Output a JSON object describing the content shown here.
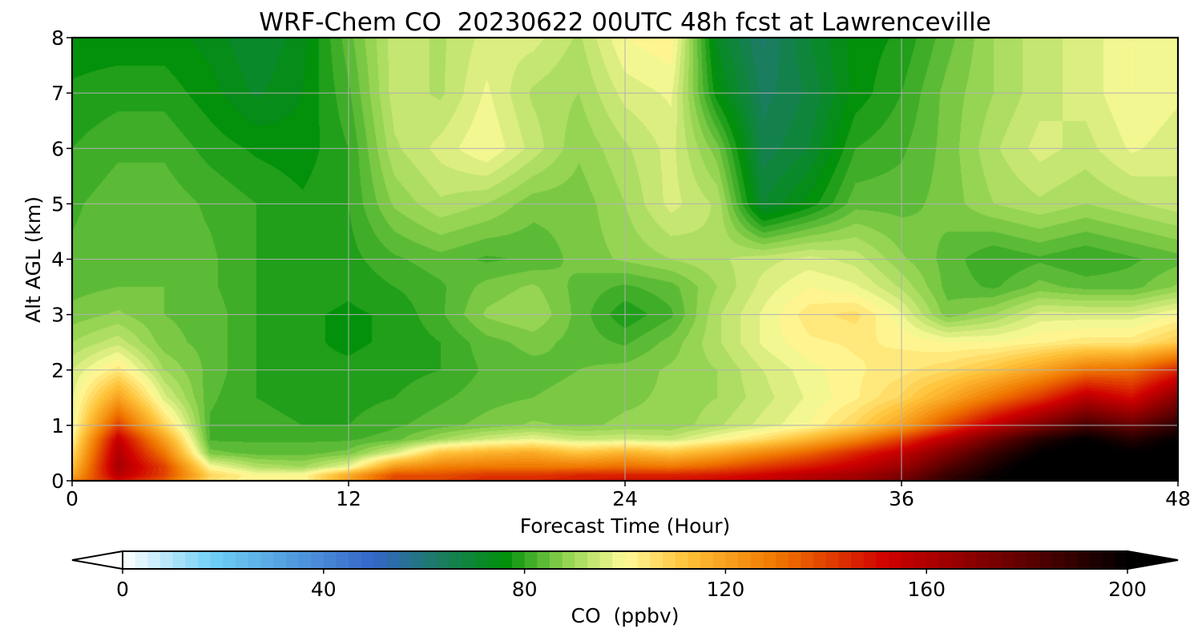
{
  "chart_data": {
    "type": "heatmap",
    "title": "WRF-Chem CO  20230622 00UTC 48h fcst at Lawrenceville",
    "xlabel": "Forecast Time (Hour)",
    "ylabel": "Alt AGL (km)",
    "xlim": [
      0,
      48
    ],
    "ylim": [
      0,
      8
    ],
    "x_ticks": [
      0,
      12,
      24,
      36,
      48
    ],
    "y_ticks": [
      0,
      1,
      2,
      3,
      4,
      5,
      6,
      7,
      8
    ],
    "grid": true,
    "colorbar": {
      "label": "CO  (ppbv)",
      "range": [
        0,
        200
      ],
      "ticks": [
        0,
        40,
        80,
        120,
        160,
        200
      ],
      "extend": "both",
      "stops": [
        {
          "v": 0,
          "color": "#ffffff"
        },
        {
          "v": 18,
          "color": "#6ecff5"
        },
        {
          "v": 50,
          "color": "#3566c8"
        },
        {
          "v": 62,
          "color": "#1c7a6a"
        },
        {
          "v": 76,
          "color": "#00900a"
        },
        {
          "v": 88,
          "color": "#8fd24e"
        },
        {
          "v": 100,
          "color": "#fffb9a"
        },
        {
          "v": 112,
          "color": "#ffc23a"
        },
        {
          "v": 130,
          "color": "#f07800"
        },
        {
          "v": 152,
          "color": "#d00000"
        },
        {
          "v": 176,
          "color": "#6e0000"
        },
        {
          "v": 200,
          "color": "#000000"
        }
      ]
    },
    "x": [
      0,
      2,
      4,
      6,
      8,
      10,
      12,
      14,
      16,
      18,
      20,
      22,
      24,
      26,
      28,
      30,
      32,
      34,
      36,
      38,
      40,
      42,
      44,
      46,
      48
    ],
    "y": [
      0,
      0.1,
      0.25,
      0.5,
      0.75,
      1,
      1.5,
      2,
      2.5,
      3,
      3.5,
      4,
      5,
      6,
      7,
      8
    ],
    "z": [
      [
        125,
        150,
        135,
        105,
        100,
        100,
        120,
        140,
        140,
        145,
        145,
        148,
        150,
        150,
        152,
        155,
        160,
        165,
        175,
        190,
        200,
        205,
        205,
        205,
        205
      ],
      [
        118,
        158,
        140,
        108,
        100,
        100,
        118,
        138,
        138,
        142,
        142,
        145,
        146,
        146,
        148,
        152,
        158,
        163,
        172,
        188,
        198,
        205,
        205,
        205,
        205
      ],
      [
        112,
        162,
        140,
        100,
        92,
        90,
        98,
        122,
        128,
        130,
        130,
        130,
        132,
        130,
        135,
        142,
        148,
        155,
        165,
        182,
        195,
        205,
        205,
        205,
        205
      ],
      [
        106,
        160,
        130,
        86,
        84,
        84,
        86,
        96,
        112,
        116,
        118,
        112,
        116,
        112,
        118,
        126,
        134,
        145,
        156,
        172,
        188,
        200,
        205,
        200,
        205
      ],
      [
        101,
        155,
        120,
        82,
        82,
        82,
        82,
        84,
        90,
        95,
        98,
        94,
        95,
        94,
        100,
        106,
        115,
        126,
        140,
        158,
        176,
        192,
        200,
        192,
        200
      ],
      [
        98,
        140,
        108,
        82,
        81,
        80,
        80,
        82,
        84,
        86,
        88,
        87,
        88,
        88,
        92,
        96,
        100,
        108,
        120,
        138,
        156,
        172,
        185,
        178,
        190
      ],
      [
        97,
        120,
        96,
        83,
        80,
        79,
        79,
        80,
        82,
        84,
        85,
        86,
        87,
        88,
        90,
        94,
        98,
        102,
        108,
        118,
        130,
        142,
        158,
        150,
        170
      ],
      [
        95,
        104,
        90,
        84,
        80,
        78,
        78,
        79,
        80,
        83,
        84,
        85,
        86,
        88,
        90,
        95,
        99,
        102,
        104,
        107,
        112,
        120,
        130,
        132,
        145
      ],
      [
        90,
        94,
        86,
        84,
        80,
        78,
        77,
        78,
        80,
        84,
        86,
        84,
        82,
        86,
        92,
        98,
        102,
        103,
        102,
        100,
        100,
        102,
        104,
        104,
        110
      ],
      [
        86,
        88,
        85,
        84,
        80,
        78,
        77,
        78,
        82,
        88,
        90,
        84,
        78,
        82,
        92,
        98,
        104,
        106,
        98,
        86,
        90,
        96,
        96,
        96,
        100
      ],
      [
        84,
        85,
        85,
        83,
        80,
        79,
        78,
        80,
        82,
        86,
        88,
        84,
        82,
        84,
        90,
        96,
        100,
        98,
        92,
        84,
        82,
        86,
        84,
        84,
        88
      ],
      [
        83,
        84,
        84,
        83,
        80,
        79,
        79,
        82,
        84,
        82,
        83,
        86,
        88,
        90,
        92,
        94,
        96,
        94,
        88,
        84,
        80,
        82,
        80,
        82,
        84
      ],
      [
        82,
        84,
        84,
        82,
        80,
        78,
        80,
        88,
        92,
        90,
        86,
        86,
        90,
        96,
        92,
        70,
        76,
        84,
        84,
        86,
        90,
        92,
        90,
        92,
        94
      ],
      [
        80,
        82,
        82,
        79,
        77,
        76,
        80,
        92,
        96,
        100,
        94,
        88,
        92,
        96,
        86,
        66,
        70,
        80,
        82,
        86,
        92,
        96,
        94,
        98,
        96
      ],
      [
        78,
        79,
        79,
        76,
        72,
        75,
        82,
        94,
        92,
        98,
        92,
        90,
        96,
        98,
        76,
        64,
        68,
        76,
        80,
        86,
        90,
        94,
        96,
        100,
        98
      ],
      [
        76,
        76,
        76,
        74,
        70,
        74,
        84,
        94,
        92,
        96,
        96,
        92,
        100,
        102,
        72,
        62,
        70,
        76,
        78,
        84,
        90,
        94,
        96,
        100,
        100
      ]
    ]
  }
}
